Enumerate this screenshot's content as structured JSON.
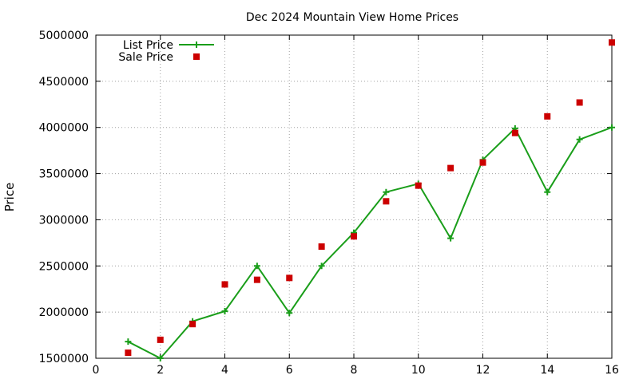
{
  "chart_data": {
    "type": "line",
    "title": "Dec 2024 Mountain View Home Prices",
    "xlabel": "",
    "ylabel": "Price",
    "xlim": [
      0,
      16
    ],
    "ylim": [
      1500000,
      5000000
    ],
    "grid": true,
    "legend_position": "top-left",
    "xticks": [
      "0",
      "2",
      "4",
      "6",
      "8",
      "10",
      "12",
      "14",
      "16"
    ],
    "yticks": [
      "1500000",
      "2000000",
      "2500000",
      "3000000",
      "3500000",
      "4000000",
      "4500000",
      "5000000"
    ],
    "series": [
      {
        "name": "List Price",
        "style": "linespoints",
        "marker": "plus",
        "color": "#1a9e1a",
        "x": [
          1,
          2,
          3,
          4,
          5,
          6,
          7,
          8,
          9,
          10,
          11,
          12,
          13,
          14,
          15,
          16
        ],
        "y": [
          1680000,
          1500000,
          1900000,
          2010000,
          2500000,
          1990000,
          2500000,
          2860000,
          3300000,
          3390000,
          2800000,
          3650000,
          3990000,
          3300000,
          3870000,
          4000000
        ]
      },
      {
        "name": "Sale Price",
        "style": "points",
        "marker": "square",
        "color": "#cc0000",
        "x": [
          1,
          2,
          3,
          4,
          5,
          6,
          7,
          8,
          9,
          10,
          11,
          12,
          13,
          14,
          15,
          16
        ],
        "y": [
          1560000,
          1700000,
          1870000,
          2300000,
          2350000,
          2370000,
          2710000,
          2820000,
          3200000,
          3370000,
          3560000,
          3620000,
          3940000,
          4120000,
          4270000,
          4920000
        ]
      }
    ]
  }
}
